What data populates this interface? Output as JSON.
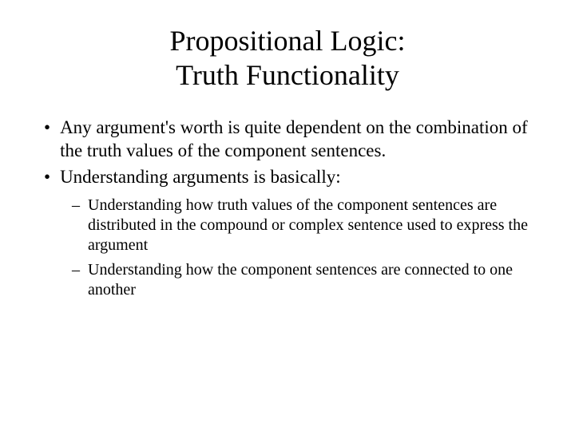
{
  "title_line1": "Propositional Logic:",
  "title_line2": "Truth Functionality",
  "bullets": [
    "Any argument's worth is quite dependent on the combination of the truth values of the component sentences.",
    "Understanding arguments is basically:"
  ],
  "sub_bullets": [
    "Understanding how truth values of the component sentences are distributed in the compound or complex sentence used to express the argument",
    "Understanding how the component sentences are connected to one another"
  ],
  "colors": {
    "background": "#ffffff",
    "text": "#000000"
  },
  "fonts": {
    "family": "Times New Roman",
    "title_size": 36,
    "bullet_size": 23,
    "sub_bullet_size": 20
  }
}
